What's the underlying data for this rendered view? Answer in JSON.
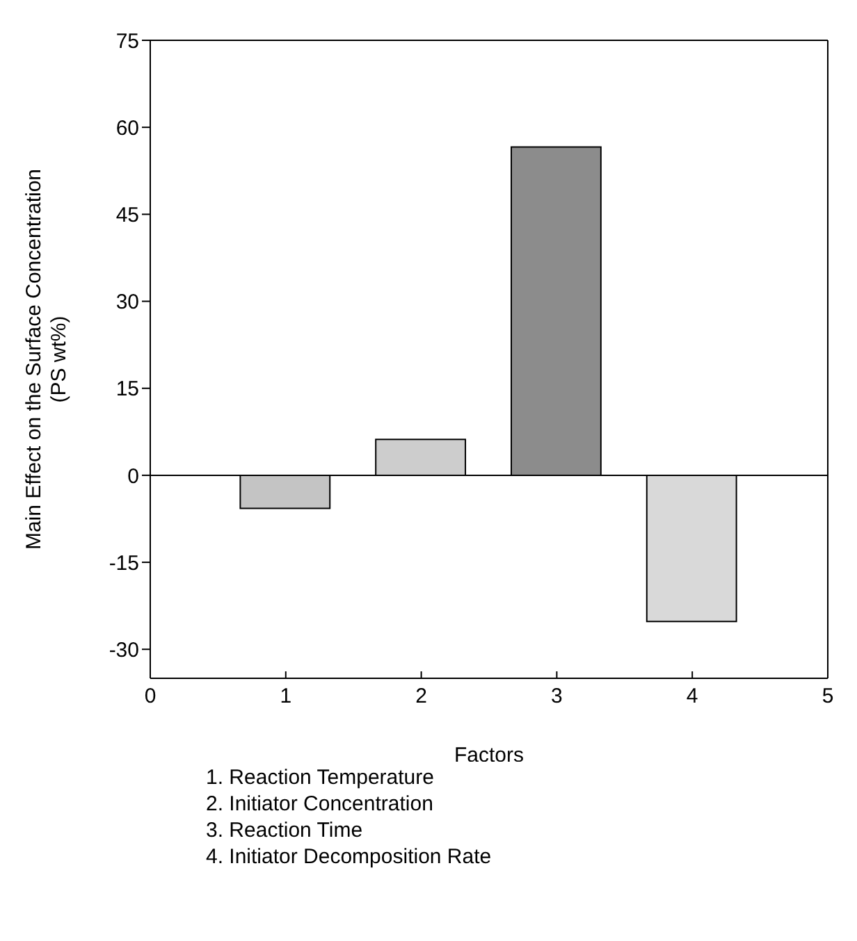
{
  "chart_data": {
    "type": "bar",
    "xlabel": "Factors",
    "ylabel": "Main Effect on the Surface Concentration\n(PS wt%)",
    "x": [
      1,
      2,
      3,
      4
    ],
    "values": [
      -5.7,
      6.2,
      56.6,
      -25.2
    ],
    "colors": [
      "#c4c4c4",
      "#cdcdcd",
      "#8c8c8c",
      "#d9d9d9"
    ],
    "xlim": [
      0,
      5
    ],
    "xticks": [
      0,
      1,
      2,
      3,
      4,
      5
    ],
    "ylim": [
      -35,
      75
    ],
    "yticks": [
      -30,
      -15,
      0,
      15,
      30,
      45,
      60,
      75
    ],
    "ref_lines": [
      {
        "axis": "y",
        "value": 0,
        "color": "#000000"
      }
    ],
    "grid": false,
    "annotations": [
      "1. Reaction Temperature",
      "2. Initiator Concentration",
      "3. Reaction Time",
      "4. Initiator Decomposition Rate"
    ]
  }
}
